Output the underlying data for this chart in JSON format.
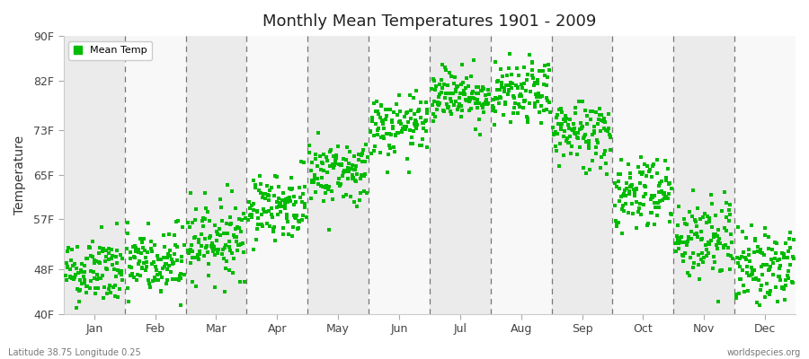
{
  "title": "Monthly Mean Temperatures 1901 - 2009",
  "ylabel": "Temperature",
  "xlabel_labels": [
    "Jan",
    "Feb",
    "Mar",
    "Apr",
    "May",
    "Jun",
    "Jul",
    "Aug",
    "Sep",
    "Oct",
    "Nov",
    "Dec"
  ],
  "ytick_values": [
    40,
    48,
    57,
    65,
    73,
    82,
    90
  ],
  "ytick_labels": [
    "40F",
    "48F",
    "57F",
    "65F",
    "73F",
    "82F",
    "90F"
  ],
  "ylim": [
    40,
    90
  ],
  "xlim": [
    0,
    12
  ],
  "dot_color": "#00bb00",
  "bg_color": "#ffffff",
  "plot_bg_color": "#ffffff",
  "band_colors_alt": [
    "#ebebeb",
    "#f8f8f8"
  ],
  "legend_label": "Mean Temp",
  "footnote_left": "Latitude 38.75 Longitude 0.25",
  "footnote_right": "worldspecies.org",
  "monthly_means": [
    47.5,
    49.0,
    53.5,
    59.5,
    65.5,
    73.5,
    79.5,
    79.5,
    72.5,
    62.0,
    53.5,
    48.5
  ],
  "monthly_stds": [
    3.2,
    3.5,
    3.5,
    3.0,
    3.0,
    2.8,
    2.5,
    2.8,
    3.2,
    3.5,
    4.0,
    3.5
  ],
  "n_years": 109,
  "seed": 42
}
